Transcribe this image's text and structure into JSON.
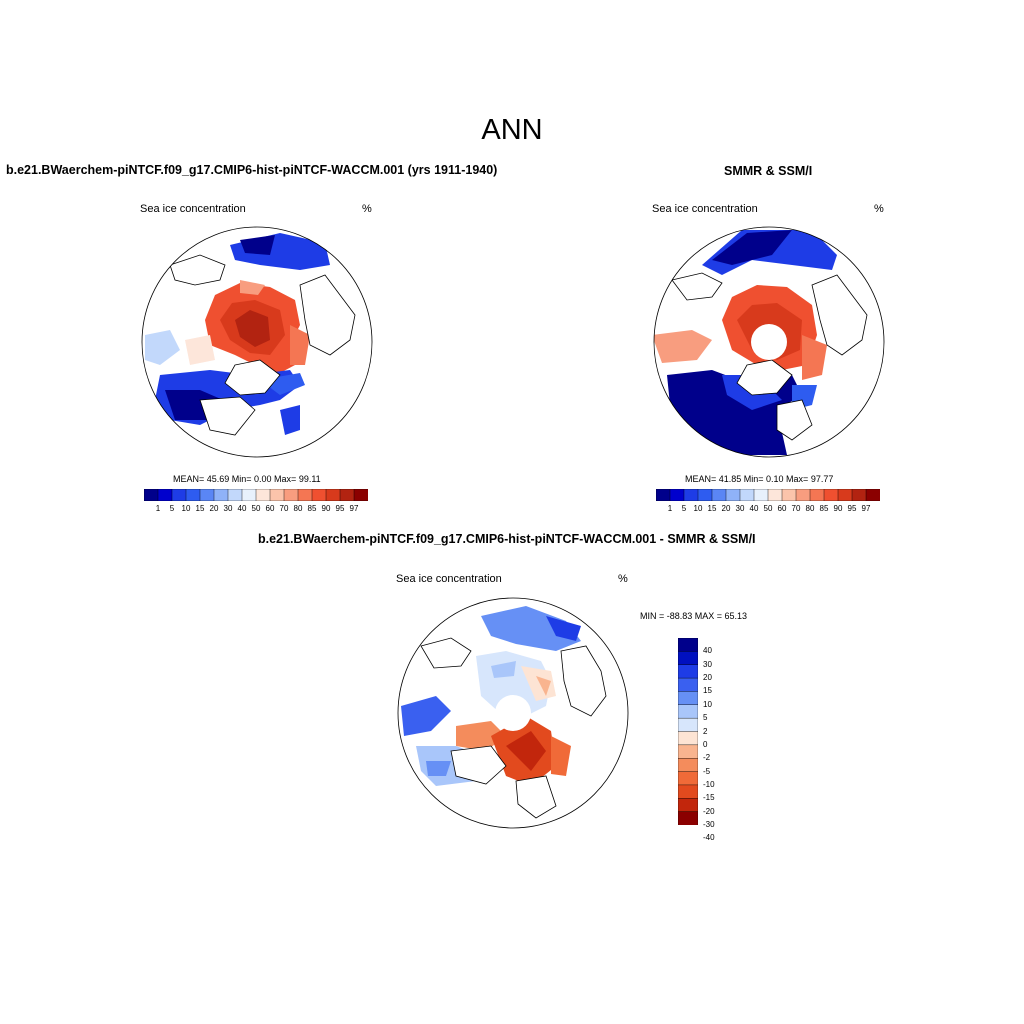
{
  "figure_title": "ANN",
  "colors": {
    "abs_scale": [
      "#00008b",
      "#0000cd",
      "#1e3ce6",
      "#2e5cf0",
      "#5a86f5",
      "#8fb2f8",
      "#c2d8fb",
      "#e8f1fc",
      "#fde6da",
      "#fbc4ab",
      "#f89d7f",
      "#f47653",
      "#ef5030",
      "#d83a1c",
      "#b22311",
      "#8b0000"
    ],
    "diff_scale": [
      "#00008b",
      "#0010c0",
      "#1e3ce6",
      "#3a60f0",
      "#6690f5",
      "#a9c6fa",
      "#d7e6fc",
      "#fde4d4",
      "#f9b48f",
      "#f48c5c",
      "#f06a38",
      "#e24a1e",
      "#c2260c",
      "#8b0000"
    ],
    "land": "#ffffff",
    "coast": "#000000"
  },
  "panels": [
    {
      "title": "b.e21.BWaerchem-piNTCF.f09_g17.CMIP6-hist-piNTCF-WACCM.001 (yrs 1911-1940)",
      "subtitle": "Sea ice concentration",
      "units": "%",
      "stats": "MEAN=  45.69  Min=   0.00  Max=  99.11",
      "scale_labels": [
        "1",
        "5",
        "10",
        "15",
        "20",
        "30",
        "40",
        "50",
        "60",
        "70",
        "80",
        "85",
        "90",
        "95",
        "97"
      ]
    },
    {
      "title": "SMMR & SSM/I",
      "subtitle": "Sea ice concentration",
      "units": "%",
      "stats": "MEAN=  41.85  Min=   0.10  Max=  97.77",
      "scale_labels": [
        "1",
        "5",
        "10",
        "15",
        "20",
        "30",
        "40",
        "50",
        "60",
        "70",
        "80",
        "85",
        "90",
        "95",
        "97"
      ]
    },
    {
      "title": "b.e21.BWaerchem-piNTCF.f09_g17.CMIP6-hist-piNTCF-WACCM.001 - SMMR & SSM/I",
      "subtitle": "Sea ice concentration",
      "units": "%",
      "stats": "MIN = -88.83 MAX =  65.13",
      "scale_labels": [
        "40",
        "30",
        "20",
        "15",
        "10",
        "5",
        "2",
        "0",
        "-2",
        "-5",
        "-10",
        "-15",
        "-20",
        "-30",
        "-40"
      ]
    }
  ]
}
